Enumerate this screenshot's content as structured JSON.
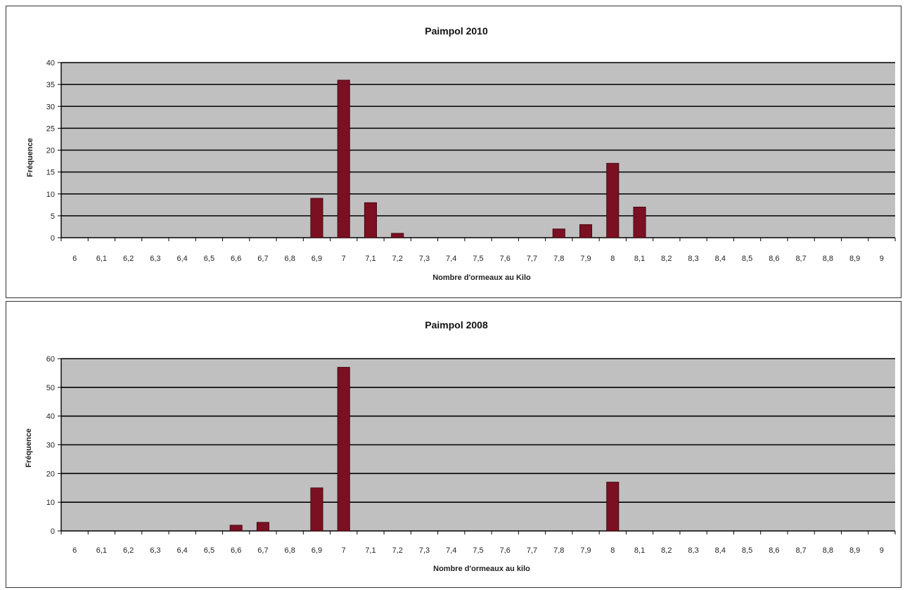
{
  "chart_data": [
    {
      "type": "bar",
      "title": "Paimpol 2010",
      "xlabel": "Nombre d'ormeaux au Kilo",
      "ylabel": "Fréquence",
      "ylim": [
        0,
        40
      ],
      "yticks": [
        "0",
        "5",
        "10",
        "15",
        "20",
        "25",
        "30",
        "35",
        "40"
      ],
      "categories": [
        "6",
        "6,1",
        "6,2",
        "6,3",
        "6,4",
        "6,5",
        "6,6",
        "6,7",
        "6,8",
        "6,9",
        "7",
        "7,1",
        "7,2",
        "7,3",
        "7,4",
        "7,5",
        "7,6",
        "7,7",
        "7,8",
        "7,9",
        "8",
        "8,1",
        "8,2",
        "8,3",
        "8,4",
        "8,5",
        "8,6",
        "8,7",
        "8,8",
        "8,9",
        "9"
      ],
      "values": [
        0,
        0,
        0,
        0,
        0,
        0,
        0,
        0,
        0,
        9,
        36,
        8,
        1,
        0,
        0,
        0,
        0,
        0,
        2,
        3,
        17,
        7,
        0,
        0,
        0,
        0,
        0,
        0,
        0,
        0,
        0
      ],
      "colors": {
        "bar": "#7b1023",
        "plot_bg": "#c0c0c0",
        "grid": "#000000"
      },
      "grid": true,
      "legend": "none"
    },
    {
      "type": "bar",
      "title": "Paimpol 2008",
      "xlabel": "Nombre d'ormeaux au kilo",
      "ylabel": "Fréquence",
      "ylim": [
        0,
        60
      ],
      "yticks": [
        "0",
        "10",
        "20",
        "30",
        "40",
        "50",
        "60"
      ],
      "categories": [
        "6",
        "6,1",
        "6,2",
        "6,3",
        "6,4",
        "6,5",
        "6,6",
        "6,7",
        "6,8",
        "6,9",
        "7",
        "7,1",
        "7,2",
        "7,3",
        "7,4",
        "7,5",
        "7,6",
        "7,7",
        "7,8",
        "7,9",
        "8",
        "8,1",
        "8,2",
        "8,3",
        "8,4",
        "8,5",
        "8,6",
        "8,7",
        "8,8",
        "8,9",
        "9"
      ],
      "values": [
        0,
        0,
        0,
        0,
        0,
        0,
        2,
        3,
        0,
        15,
        57,
        0,
        0,
        0,
        0,
        0,
        0,
        0,
        0,
        0,
        17,
        0,
        0,
        0,
        0,
        0,
        0,
        0,
        0,
        0,
        0
      ],
      "colors": {
        "bar": "#7b1023",
        "plot_bg": "#c0c0c0",
        "grid": "#000000"
      },
      "grid": true,
      "legend": "none"
    }
  ]
}
